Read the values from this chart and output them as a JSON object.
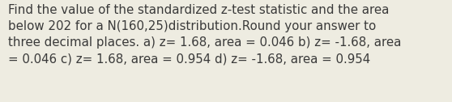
{
  "text": "Find the value of the standardized z-test statistic and the area\nbelow 202 for a N(160,25)distribution.Round your answer to\nthree decimal places. a) z= 1.68, area = 0.046 b) z= -1.68, area\n= 0.046 c) z= 1.68, area = 0.954 d) z= -1.68, area = 0.954",
  "background_color": "#eeece1",
  "text_color": "#3a3a3a",
  "font_size": 10.8,
  "fig_width": 5.58,
  "fig_height": 1.26,
  "dpi": 100
}
